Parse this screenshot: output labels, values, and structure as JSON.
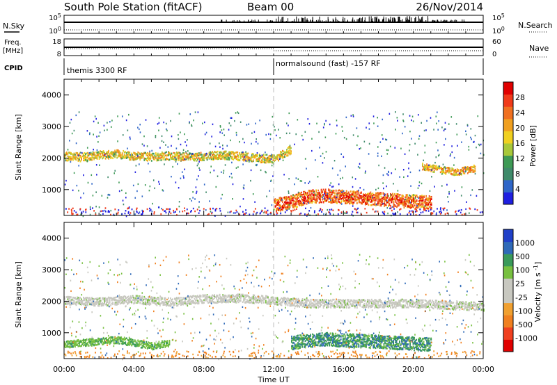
{
  "header": {
    "station": "South Pole Station (fitACF)",
    "beam": "Beam 00",
    "date": "26/Nov/2014"
  },
  "strips": {
    "nsky": {
      "label": "N.Sky",
      "ticks_left": [
        "10^5",
        "10^0"
      ],
      "ticks_right": [
        "10^5",
        "10^0"
      ],
      "legend": "N.Search",
      "legend_style": "dotted"
    },
    "freq": {
      "label_line1": "Freq.",
      "label_line2": "[MHz]",
      "ticks_left": [
        "18",
        "8"
      ],
      "ticks_right": [
        "60",
        "0"
      ],
      "legend": "Nave",
      "legend_style": "dotted"
    },
    "cpid": {
      "label": "CPID",
      "mode1": "themis 3300 RF",
      "mode2": "normalsound (fast) -157 RF",
      "switch_hour": 12
    }
  },
  "colors": {
    "power": [
      "#1f1fe0",
      "#2f66c8",
      "#3f8a6a",
      "#3e9a55",
      "#a8c83a",
      "#f0d020",
      "#f0a020",
      "#f07020",
      "#f03a1a",
      "#e00000"
    ],
    "velocity": [
      "#e00000",
      "#f04020",
      "#f08020",
      "#f0a030",
      "#c8c8c0",
      "#c8c8c0",
      "#78c040",
      "#3a9a5a",
      "#2f6ab8",
      "#2040c8"
    ],
    "gate_grey": "#b0b0b0"
  },
  "chart_data": [
    {
      "type": "heatmap",
      "title": "",
      "xlabel": "Time UT",
      "ylabel": "Slant Range [km]",
      "colorbar_label": "Power [dB]",
      "colorbar_ticks": [
        "28",
        "24",
        "20",
        "16",
        "12",
        "8",
        "4"
      ],
      "colorbar_range": [
        0,
        30
      ],
      "x_ticks": [
        "00:00",
        "04:00",
        "08:00",
        "12:00",
        "16:00",
        "20:00",
        "00:00"
      ],
      "y_ticks": [
        "1000",
        "2000",
        "3000",
        "4000"
      ],
      "xlim": [
        0,
        24
      ],
      "ylim": [
        180,
        4500
      ],
      "series": [
        {
          "x": [
            0,
            1,
            2,
            3,
            4,
            5,
            6,
            7,
            8,
            9,
            10,
            11,
            12,
            13
          ],
          "y": [
            2080,
            2050,
            2120,
            2150,
            2090,
            2060,
            2100,
            2050,
            2080,
            2120,
            2080,
            2020,
            2000,
            2300
          ],
          "power": 18
        },
        {
          "x": [
            12,
            13,
            14,
            15,
            16,
            17,
            18,
            19,
            20,
            21
          ],
          "y": [
            520,
            640,
            800,
            830,
            790,
            760,
            720,
            680,
            650,
            620
          ],
          "power": 26
        },
        {
          "x": [
            20.5,
            21.5,
            22.5,
            23.5
          ],
          "y": [
            1750,
            1650,
            1580,
            1700
          ],
          "power": 20
        }
      ]
    },
    {
      "type": "heatmap",
      "title": "",
      "xlabel": "Time UT",
      "ylabel": "Slant Range [km]",
      "colorbar_label": "Velocity [m s^-1]",
      "colorbar_ticks": [
        "1000",
        "500",
        "100",
        "25",
        "-25",
        "-100",
        "-500",
        "-1000"
      ],
      "colorbar_range": [
        -1000,
        1000
      ],
      "x_ticks": [
        "00:00",
        "04:00",
        "08:00",
        "12:00",
        "16:00",
        "20:00",
        "00:00"
      ],
      "y_ticks": [
        "1000",
        "2000",
        "3000",
        "4000"
      ],
      "xlim": [
        0,
        24
      ],
      "ylim": [
        180,
        4500
      ],
      "series": [
        {
          "x": [
            0,
            2,
            4,
            6,
            8,
            10,
            12,
            14,
            16,
            18,
            20,
            22,
            24
          ],
          "y": [
            2050,
            2000,
            2080,
            2000,
            2100,
            2120,
            2050,
            1950,
            1950,
            1950,
            1950,
            1900,
            1850
          ],
          "velocity": 0
        },
        {
          "x": [
            13,
            14,
            15,
            16,
            17,
            18,
            19,
            20,
            21
          ],
          "y": [
            700,
            780,
            820,
            790,
            760,
            740,
            700,
            680,
            650
          ],
          "velocity": 300
        },
        {
          "x": [
            0,
            1,
            2,
            3,
            4,
            5,
            6
          ],
          "y": [
            650,
            700,
            750,
            800,
            700,
            600,
            700
          ],
          "velocity": 60
        }
      ]
    }
  ]
}
